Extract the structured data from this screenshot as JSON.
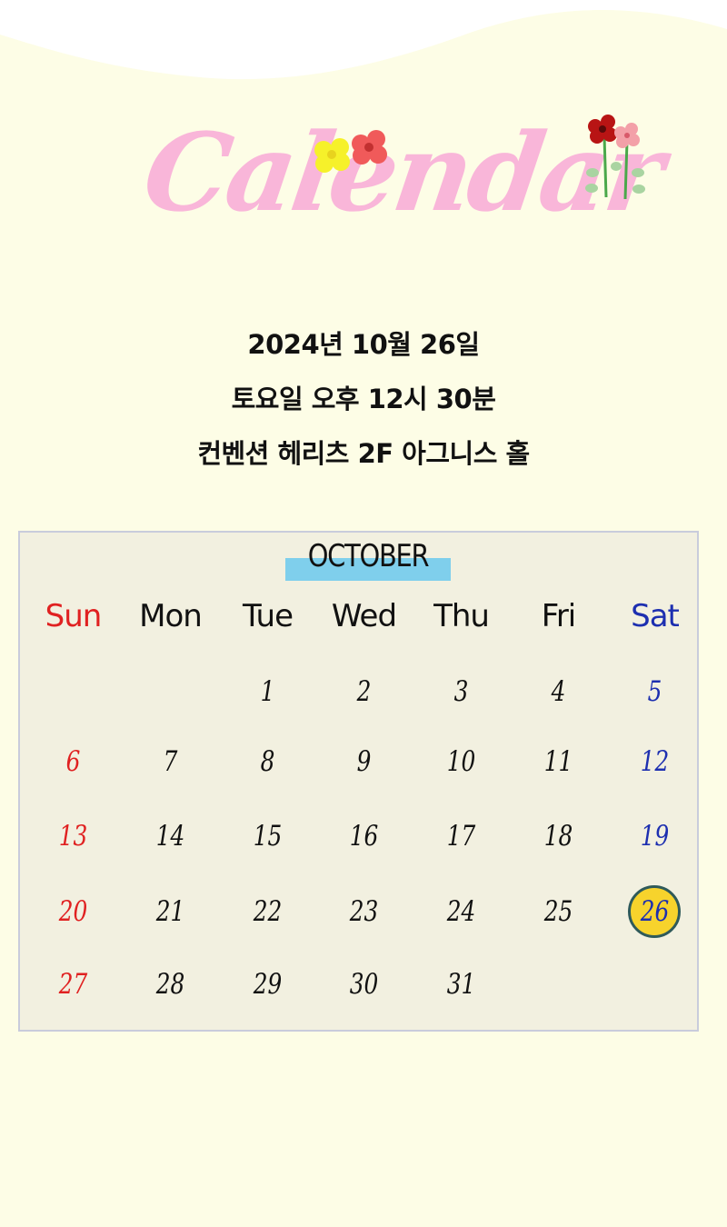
{
  "header": {
    "title": "Calendar"
  },
  "event": {
    "date": "2024년 10월 26일",
    "time": "토요일 오후 12시 30분",
    "venue": "컨벤션 헤리츠 2F 아그니스 홀"
  },
  "calendar": {
    "month": "OCTOBER",
    "weekdays": [
      "Sun",
      "Mon",
      "Tue",
      "Wed",
      "Thu",
      "Fri",
      "Sat"
    ],
    "weeks": [
      [
        "",
        "",
        "1",
        "2",
        "3",
        "4",
        "5"
      ],
      [
        "6",
        "7",
        "8",
        "9",
        "10",
        "11",
        "12"
      ],
      [
        "13",
        "14",
        "15",
        "16",
        "17",
        "18",
        "19"
      ],
      [
        "20",
        "21",
        "22",
        "23",
        "24",
        "25",
        "26"
      ],
      [
        "27",
        "28",
        "29",
        "30",
        "31",
        "",
        ""
      ]
    ],
    "highlighted_day": "26"
  },
  "colors": {
    "background": "#fdfde6",
    "title_pink": "#f9b6d9",
    "sunday_red": "#e02121",
    "saturday_blue": "#1d2fb0",
    "month_highlight": "#7fcfec",
    "day_highlight": "#f7d32c",
    "calendar_bg": "#f2f0e0"
  },
  "icons": [
    "yellow-flower-icon",
    "red-flower-icon",
    "flower-stems-icon"
  ]
}
